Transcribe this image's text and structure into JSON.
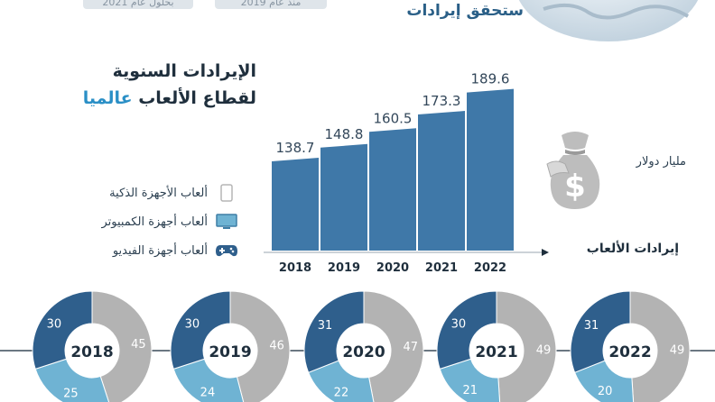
{
  "header": {
    "pill_left": "بحلول عام 2021",
    "pill_mid": "منذ عام 2019",
    "title": "ستحقق إيرادات"
  },
  "title_line1": "الإيرادات السنوية",
  "title_line2_prefix": "لقطاع الألعاب ",
  "title_line2_accent": "عالميا",
  "unit_label": "مليار دولار",
  "axis_title": "إيرادات الألعاب",
  "legend": [
    {
      "label": "ألعاب الأجهزة الذكية",
      "icon": "smartphone-icon"
    },
    {
      "label": "ألعاب أجهزة الكمبيوتر",
      "icon": "computer-monitor-icon"
    },
    {
      "label": "ألعاب أجهزة الفيديو",
      "icon": "gamepad-icon"
    }
  ],
  "colors": {
    "bar": "#3f78a8",
    "dark_blue": "#2f5f8c",
    "light_blue": "#6fb3d3",
    "grey": "#b3b3b3",
    "accent": "#2a8fc6"
  },
  "chart_data": [
    {
      "type": "bar",
      "categories": [
        "2018",
        "2019",
        "2020",
        "2021",
        "2022"
      ],
      "values": [
        138.7,
        148.8,
        160.5,
        173.3,
        189.6
      ],
      "ylabel": "مليار دولار",
      "xlabel": "إيرادات الألعاب"
    },
    {
      "type": "pie",
      "style": "donut",
      "charts": [
        {
          "year": "2018",
          "slices": {
            "consoles": 30,
            "computers": 25,
            "smart_devices": 45
          }
        },
        {
          "year": "2019",
          "slices": {
            "consoles": 30,
            "computers": 24,
            "smart_devices": 46
          }
        },
        {
          "year": "2020",
          "slices": {
            "consoles": 31,
            "computers": 22,
            "smart_devices": 47
          }
        },
        {
          "year": "2021",
          "slices": {
            "consoles": 30,
            "computers": 21,
            "smart_devices": 49
          }
        },
        {
          "year": "2022",
          "slices": {
            "consoles": 31,
            "computers": 20,
            "smart_devices": 49
          }
        }
      ]
    }
  ]
}
